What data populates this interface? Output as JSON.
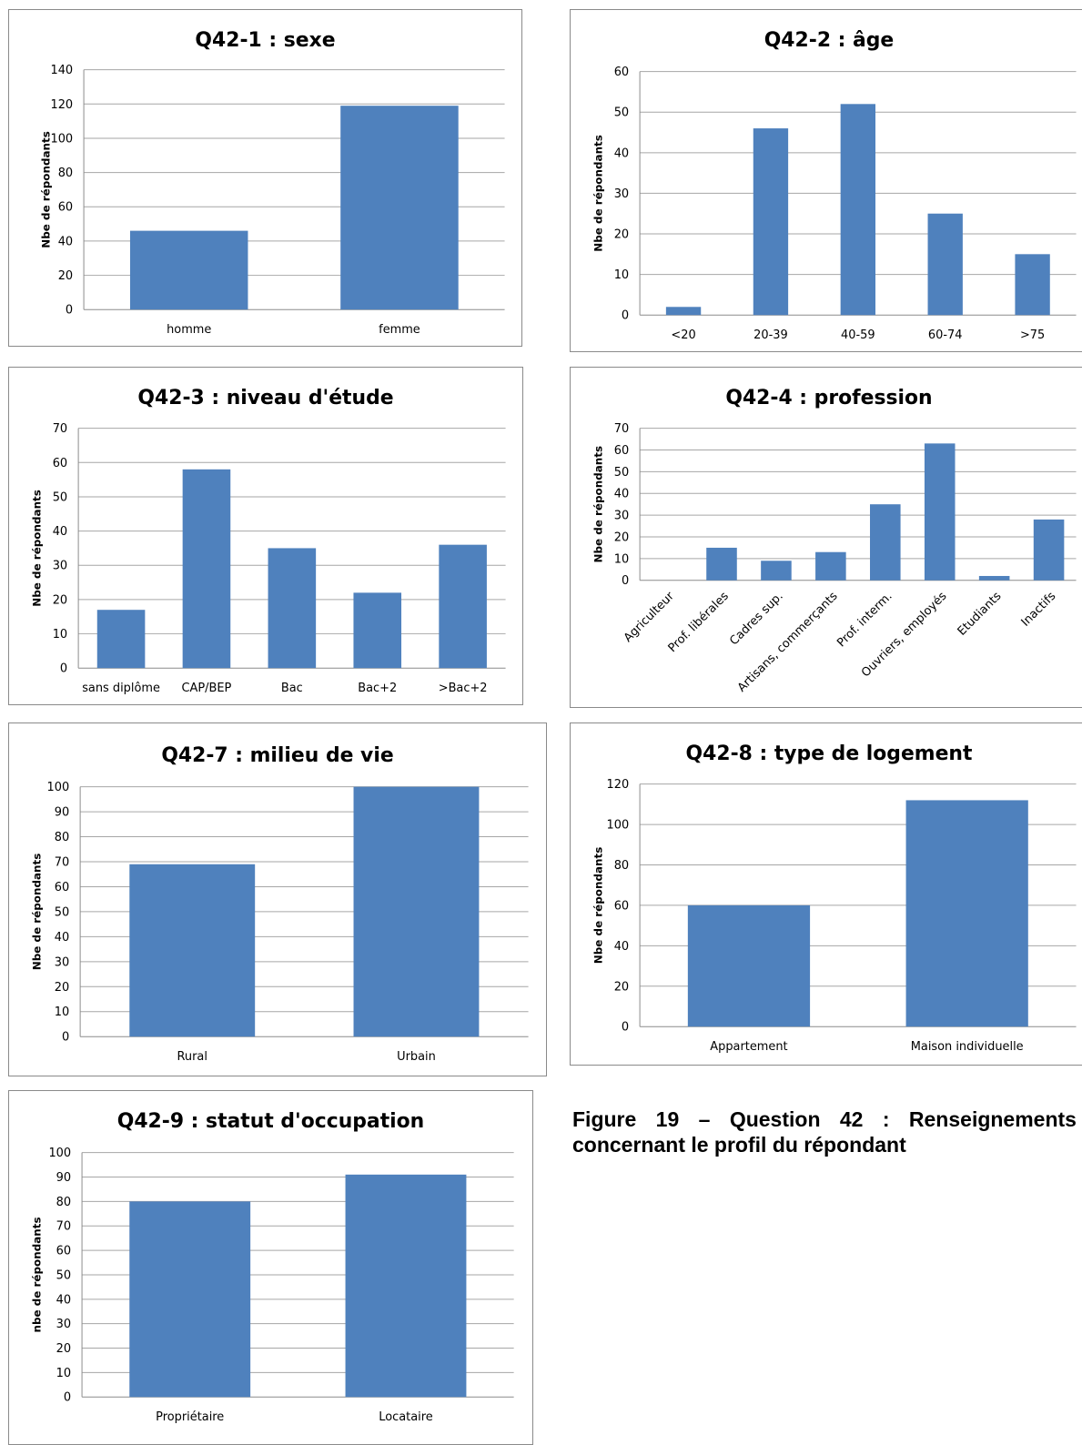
{
  "charts": [
    {
      "id": "q42-1",
      "title": "Q42-1 : sexe",
      "ylabel": "Nbe de répondants",
      "ylim": [
        0,
        140
      ],
      "ystep": 20,
      "categories": [
        "homme",
        "femme"
      ],
      "values": [
        46,
        119
      ]
    },
    {
      "id": "q42-2",
      "title": "Q42-2 : âge",
      "ylabel": "Nbe de répondants",
      "ylim": [
        0,
        60
      ],
      "ystep": 10,
      "categories": [
        "<20",
        "20-39",
        "40-59",
        "60-74",
        ">75"
      ],
      "values": [
        2,
        46,
        52,
        25,
        15
      ]
    },
    {
      "id": "q42-3",
      "title": "Q42-3 : niveau d'étude",
      "ylabel": "Nbe de répondants",
      "ylim": [
        0,
        70
      ],
      "ystep": 10,
      "categories": [
        "sans diplôme",
        "CAP/BEP",
        "Bac",
        "Bac+2",
        ">Bac+2"
      ],
      "values": [
        17,
        58,
        35,
        22,
        36
      ]
    },
    {
      "id": "q42-4",
      "title": "Q42-4 : profession",
      "ylabel": "Nbe de répondants",
      "ylim": [
        0,
        70
      ],
      "ystep": 10,
      "categories": [
        "Agriculteur",
        "Prof. libérales",
        "Cadres sup.",
        "Artisans, commerçants",
        "Prof. interm.",
        "Ouvriers, employés",
        "Etudiants",
        "Inactifs"
      ],
      "values": [
        0,
        15,
        9,
        13,
        35,
        63,
        2,
        28
      ]
    },
    {
      "id": "q42-7",
      "title": "Q42-7 : milieu de vie",
      "ylabel": "Nbe de répondants",
      "ylim": [
        0,
        100
      ],
      "ystep": 10,
      "categories": [
        "Rural",
        "Urbain"
      ],
      "values": [
        69,
        100
      ]
    },
    {
      "id": "q42-8",
      "title": "Q42-8 : type de logement",
      "ylabel": "Nbe de répondants",
      "ylim": [
        0,
        120
      ],
      "ystep": 20,
      "categories": [
        "Appartement",
        "Maison individuelle"
      ],
      "values": [
        60,
        112
      ]
    },
    {
      "id": "q42-9",
      "title": "Q42-9 : statut d'occupation",
      "ylabel": "nbe de répondants",
      "ylim": [
        0,
        100
      ],
      "ystep": 10,
      "categories": [
        "Propriétaire",
        "Locataire"
      ],
      "values": [
        80,
        91
      ]
    }
  ],
  "chart_data": [
    {
      "type": "bar",
      "title": "Q42-1 : sexe",
      "ylabel": "Nbe de répondants",
      "categories": [
        "homme",
        "femme"
      ],
      "values": [
        46,
        119
      ],
      "ylim": [
        0,
        140
      ]
    },
    {
      "type": "bar",
      "title": "Q42-2 : âge",
      "ylabel": "Nbe de répondants",
      "categories": [
        "<20",
        "20-39",
        "40-59",
        "60-74",
        ">75"
      ],
      "values": [
        2,
        46,
        52,
        25,
        15
      ],
      "ylim": [
        0,
        60
      ]
    },
    {
      "type": "bar",
      "title": "Q42-3 : niveau d'étude",
      "ylabel": "Nbe de répondants",
      "categories": [
        "sans diplôme",
        "CAP/BEP",
        "Bac",
        "Bac+2",
        ">Bac+2"
      ],
      "values": [
        17,
        58,
        35,
        22,
        36
      ],
      "ylim": [
        0,
        70
      ]
    },
    {
      "type": "bar",
      "title": "Q42-4 : profession",
      "ylabel": "Nbe de répondants",
      "categories": [
        "Agriculteur",
        "Prof. libérales",
        "Cadres sup.",
        "Artisans, commerçants",
        "Prof. interm.",
        "Ouvriers, employés",
        "Etudiants",
        "Inactifs"
      ],
      "values": [
        0,
        15,
        9,
        13,
        35,
        63,
        2,
        28
      ],
      "ylim": [
        0,
        70
      ]
    },
    {
      "type": "bar",
      "title": "Q42-7 : milieu de vie",
      "ylabel": "Nbe de répondants",
      "categories": [
        "Rural",
        "Urbain"
      ],
      "values": [
        69,
        100
      ],
      "ylim": [
        0,
        100
      ]
    },
    {
      "type": "bar",
      "title": "Q42-8 : type de logement",
      "ylabel": "Nbe de répondants",
      "categories": [
        "Appartement",
        "Maison individuelle"
      ],
      "values": [
        60,
        112
      ],
      "ylim": [
        0,
        120
      ]
    },
    {
      "type": "bar",
      "title": "Q42-9 : statut d'occupation",
      "ylabel": "nbe de répondants",
      "categories": [
        "Propriétaire",
        "Locataire"
      ],
      "values": [
        80,
        91
      ],
      "ylim": [
        0,
        100
      ]
    }
  ],
  "style": {
    "bar_color": "#4f81bd",
    "grid_color": "#a6a6a6",
    "axis_color": "#8c8c8c"
  },
  "caption": {
    "line1": "Figure 19 – Question 42 : Renseignements",
    "line2": "concernant le profil du répondant"
  }
}
